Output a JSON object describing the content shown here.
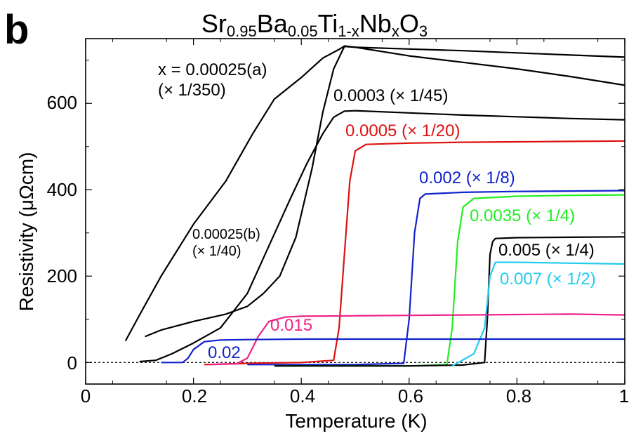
{
  "panel_letter": "b",
  "title": {
    "base1": "Sr",
    "sub1": "0.95",
    "base2": "Ba",
    "sub2": "0.05",
    "base3": "Ti",
    "sub3": "1-x",
    "base4": "Nb",
    "sub4": "x",
    "base5": "O",
    "sub5": "3"
  },
  "chart_data": {
    "type": "line",
    "title": "Sr0.95Ba0.05Ti1-xNbxO3",
    "xlabel": "Temperature (K)",
    "ylabel": "Resistivity (μΩcm)",
    "xlim": [
      0,
      1
    ],
    "ylim": [
      -50,
      750
    ],
    "xticks": [
      "0",
      "0.2",
      "0.4",
      "0.6",
      "0.8",
      "1"
    ],
    "yticks": [
      "0",
      "200",
      "400",
      "600"
    ],
    "ytick_values": [
      0,
      200,
      400,
      600
    ],
    "xtick_values": [
      0,
      0.2,
      0.4,
      0.6,
      0.8,
      1.0
    ],
    "zero_line": true,
    "series": [
      {
        "name": "x = 0.00025(a) (× 1/350)",
        "color": "#000000",
        "x": [
          0.074,
          0.1,
          0.14,
          0.2,
          0.26,
          0.31,
          0.35,
          0.4,
          0.44,
          0.47,
          0.48,
          0.5,
          0.6,
          0.7,
          0.8,
          0.9,
          1.0
        ],
        "y": [
          50,
          110,
          200,
          320,
          420,
          530,
          610,
          660,
          705,
          725,
          733,
          730,
          726,
          722,
          717,
          712,
          707
        ]
      },
      {
        "name": "0.00025(b) (× 1/40)",
        "color": "#000000",
        "x": [
          0.11,
          0.14,
          0.2,
          0.26,
          0.3,
          0.33,
          0.36,
          0.39,
          0.42,
          0.44,
          0.46,
          0.48,
          0.5,
          0.6,
          0.7,
          0.8,
          0.9,
          1.0
        ],
        "y": [
          60,
          75,
          95,
          112,
          130,
          160,
          200,
          290,
          450,
          580,
          680,
          732,
          730,
          710,
          695,
          680,
          662,
          642
        ]
      },
      {
        "name": "0.0003 (× 1/45)",
        "color": "#000000",
        "x": [
          0.1,
          0.13,
          0.16,
          0.2,
          0.25,
          0.3,
          0.34,
          0.38,
          0.41,
          0.44,
          0.46,
          0.48,
          0.5,
          0.6,
          0.7,
          0.8,
          0.9,
          1.0
        ],
        "y": [
          2,
          5,
          20,
          45,
          80,
          160,
          270,
          380,
          460,
          530,
          568,
          582,
          583,
          578,
          573,
          569,
          565,
          562
        ]
      },
      {
        "name": "0.0005 (× 1/20)",
        "color": "#dd1111",
        "x": [
          0.22,
          0.3,
          0.4,
          0.46,
          0.47,
          0.48,
          0.49,
          0.5,
          0.52,
          0.6,
          0.7,
          0.8,
          0.9,
          1.0
        ],
        "y": [
          -5,
          -2,
          0,
          5,
          80,
          250,
          420,
          490,
          505,
          508,
          510,
          511,
          512,
          513
        ]
      },
      {
        "name": "0.002 (× 1/8)",
        "color": "#1122cc",
        "x": [
          0.3,
          0.4,
          0.5,
          0.59,
          0.6,
          0.61,
          0.62,
          0.63,
          0.7,
          0.8,
          0.9,
          1.0
        ],
        "y": [
          -5,
          -5,
          -5,
          -2,
          100,
          300,
          380,
          390,
          394,
          396,
          397,
          398
        ]
      },
      {
        "name": "0.0035 (× 1/4)",
        "color": "#22ee22",
        "x": [
          0.35,
          0.5,
          0.6,
          0.67,
          0.68,
          0.69,
          0.7,
          0.72,
          0.8,
          0.9,
          1.0
        ],
        "y": [
          -8,
          -8,
          -8,
          -5,
          80,
          280,
          360,
          380,
          385,
          387,
          388
        ]
      },
      {
        "name": "0.005 (× 1/4)",
        "color": "#000000",
        "x": [
          0.35,
          0.5,
          0.6,
          0.7,
          0.74,
          0.745,
          0.75,
          0.755,
          0.76,
          0.8,
          0.9,
          1.0
        ],
        "y": [
          -8,
          -8,
          -8,
          -6,
          0,
          100,
          250,
          280,
          287,
          289,
          290,
          291
        ]
      },
      {
        "name": "0.007 (× 1/2)",
        "color": "#22ccee",
        "x": [
          0.68,
          0.72,
          0.74,
          0.75,
          0.76,
          0.8,
          0.9,
          1.0
        ],
        "y": [
          -8,
          20,
          80,
          200,
          232,
          232,
          230,
          228
        ]
      },
      {
        "name": "0.015",
        "color": "#ee2288",
        "x": [
          0.23,
          0.28,
          0.3,
          0.32,
          0.34,
          0.37,
          0.4,
          0.5,
          0.6,
          0.7,
          0.8,
          0.9,
          1.0
        ],
        "y": [
          -5,
          -3,
          10,
          60,
          95,
          105,
          107,
          108,
          109,
          110,
          111,
          112,
          110
        ]
      },
      {
        "name": "0.02",
        "color": "#1122cc",
        "x": [
          0.14,
          0.18,
          0.19,
          0.2,
          0.22,
          0.25,
          0.3,
          0.4,
          0.5,
          0.6,
          0.7,
          0.8,
          0.9,
          1.0
        ],
        "y": [
          0,
          0,
          10,
          30,
          48,
          52,
          53,
          54,
          54,
          54,
          54,
          54,
          54,
          54
        ]
      }
    ],
    "annotations": [
      {
        "text": "x = 0.00025(a)",
        "color": "#000000"
      },
      {
        "text": "(× 1/350)",
        "color": "#000000"
      },
      {
        "text": "0.00025(b)",
        "color": "#000000"
      },
      {
        "text": "(× 1/40)",
        "color": "#000000"
      },
      {
        "text": "0.0003 (× 1/45)",
        "color": "#000000"
      },
      {
        "text": "0.0005 (× 1/20)",
        "color": "#dd1111"
      },
      {
        "text": "0.002 (× 1/8)",
        "color": "#1122cc"
      },
      {
        "text": "0.0035 (× 1/4)",
        "color": "#22ee22"
      },
      {
        "text": "0.005 (× 1/4)",
        "color": "#000000"
      },
      {
        "text": "0.007 (× 1/2)",
        "color": "#22ccee"
      },
      {
        "text": "0.015",
        "color": "#ee2288"
      },
      {
        "text": "0.02",
        "color": "#1122cc"
      }
    ]
  }
}
